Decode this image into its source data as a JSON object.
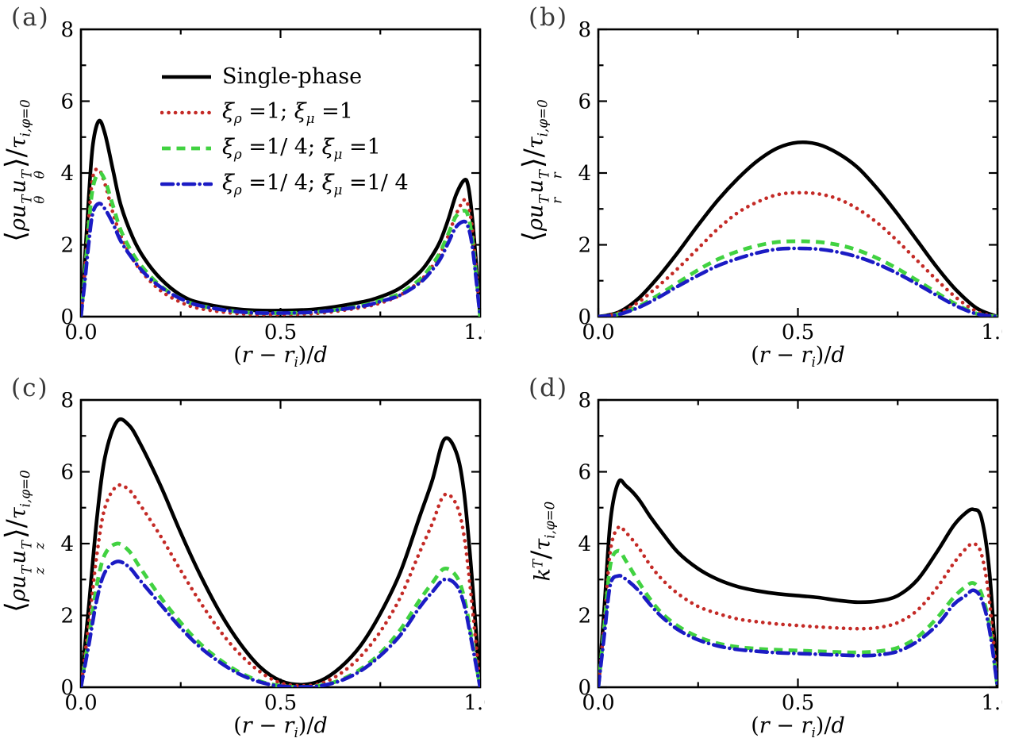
{
  "figure": {
    "background": "#ffffff",
    "axis_frame_color": "#000000",
    "panels": [
      {
        "tag": "(a)",
        "ylabel_tokens": [
          {
            "t": "⟨",
            "cls": "big"
          },
          {
            "t": "ρ",
            "i": 1
          },
          {
            "t": "u",
            "i": 1,
            "sup": "T",
            "sub": "θ"
          },
          {
            "t": "u",
            "i": 1,
            "sup": "T",
            "sub": "θ"
          },
          {
            "t": "⟩",
            "cls": "big"
          },
          {
            "t": "/",
            "cls": "slash"
          },
          {
            "t": "τ",
            "i": 1,
            "sub": "i,φ=0"
          }
        ],
        "xlabel_tokens": [
          {
            "t": "("
          },
          {
            "t": "r",
            "i": 1
          },
          {
            "t": " − "
          },
          {
            "t": "r",
            "i": 1,
            "sub": "i"
          },
          {
            "t": ")/"
          },
          {
            "t": "d",
            "i": 1
          }
        ],
        "has_legend": true
      },
      {
        "tag": "(b)",
        "ylabel_tokens": [
          {
            "t": "⟨",
            "cls": "big"
          },
          {
            "t": "ρ",
            "i": 1
          },
          {
            "t": "u",
            "i": 1,
            "sup": "T",
            "sub": "r"
          },
          {
            "t": "u",
            "i": 1,
            "sup": "T",
            "sub": "r"
          },
          {
            "t": "⟩",
            "cls": "big"
          },
          {
            "t": "/",
            "cls": "slash"
          },
          {
            "t": "τ",
            "i": 1,
            "sub": "i,φ=0"
          }
        ],
        "xlabel_tokens": [
          {
            "t": "("
          },
          {
            "t": "r",
            "i": 1
          },
          {
            "t": " − "
          },
          {
            "t": "r",
            "i": 1,
            "sub": "i"
          },
          {
            "t": ")/"
          },
          {
            "t": "d",
            "i": 1
          }
        ],
        "has_legend": false
      },
      {
        "tag": "(c)",
        "ylabel_tokens": [
          {
            "t": "⟨",
            "cls": "big"
          },
          {
            "t": "ρ",
            "i": 1
          },
          {
            "t": "u",
            "i": 1,
            "sup": "T",
            "sub": "z"
          },
          {
            "t": "u",
            "i": 1,
            "sup": "T",
            "sub": "z"
          },
          {
            "t": "⟩",
            "cls": "big"
          },
          {
            "t": "/",
            "cls": "slash"
          },
          {
            "t": "τ",
            "i": 1,
            "sub": "i,φ=0"
          }
        ],
        "xlabel_tokens": [
          {
            "t": "("
          },
          {
            "t": "r",
            "i": 1
          },
          {
            "t": " − "
          },
          {
            "t": "r",
            "i": 1,
            "sub": "i"
          },
          {
            "t": ")/"
          },
          {
            "t": "d",
            "i": 1
          }
        ],
        "has_legend": false
      },
      {
        "tag": "(d)",
        "ylabel_tokens": [
          {
            "t": "k",
            "i": 1,
            "sup": "T"
          },
          {
            "t": "/",
            "cls": "slash"
          },
          {
            "t": "τ",
            "i": 1,
            "sub": "i,φ=0"
          }
        ],
        "xlabel_tokens": [
          {
            "t": "("
          },
          {
            "t": "r",
            "i": 1
          },
          {
            "t": " − "
          },
          {
            "t": "r",
            "i": 1,
            "sub": "i"
          },
          {
            "t": ")/"
          },
          {
            "t": "d",
            "i": 1
          }
        ],
        "has_legend": false
      }
    ],
    "axis": {
      "xtick_labels": [
        "0.0",
        "0.5",
        "1.0"
      ],
      "xtick_vals": [
        0,
        0.5,
        1
      ],
      "xminor_vals": [
        0.25,
        0.75
      ],
      "ytick_labels": [
        "0",
        "2",
        "4",
        "6",
        "8"
      ],
      "ytick_vals": [
        0,
        2,
        4,
        6,
        8
      ],
      "yminor_vals": [
        1,
        3,
        5,
        7
      ]
    },
    "legend": {
      "items": [
        {
          "label_tokens": [
            {
              "t": "Single-phase"
            }
          ],
          "color": "#000000",
          "line": "solid"
        },
        {
          "label_tokens": [
            {
              "t": "ξ",
              "i": 1,
              "sub": "ρ"
            },
            {
              "t": " =1; "
            },
            {
              "t": "ξ",
              "i": 1,
              "sub": "μ"
            },
            {
              "t": " =1"
            }
          ],
          "color": "#c42a26",
          "line": "dotted"
        },
        {
          "label_tokens": [
            {
              "t": "ξ",
              "i": 1,
              "sub": "ρ"
            },
            {
              "t": " =1/ 4; "
            },
            {
              "t": "ξ",
              "i": 1,
              "sub": "μ"
            },
            {
              "t": " =1"
            }
          ],
          "color": "#41d241",
          "line": "dashed"
        },
        {
          "label_tokens": [
            {
              "t": "ξ",
              "i": 1,
              "sub": "ρ"
            },
            {
              "t": " =1/ 4; "
            },
            {
              "t": "ξ",
              "i": 1,
              "sub": "μ"
            },
            {
              "t": " =1/ 4"
            }
          ],
          "color": "#1b1bc4",
          "line": "dashdot"
        }
      ]
    }
  },
  "chart_data": [
    {
      "type": "line",
      "panel": "(a)",
      "ylabel": "⟨ρ u_θ^T u_θ^T⟩ / τ_{i,φ=0}",
      "xlabel": "(r − r_i)/d",
      "xlim": [
        0,
        1
      ],
      "ylim": [
        0,
        8
      ],
      "xticks": [
        0,
        0.5,
        1
      ],
      "yticks": [
        0,
        2,
        4,
        6,
        8
      ],
      "grid": false,
      "legend_position": "upper left (only panel with legend)",
      "x": [
        0,
        0.01,
        0.02,
        0.03,
        0.045,
        0.06,
        0.08,
        0.1,
        0.13,
        0.16,
        0.2,
        0.25,
        0.3,
        0.4,
        0.5,
        0.6,
        0.7,
        0.75,
        0.8,
        0.85,
        0.88,
        0.9,
        0.92,
        0.94,
        0.96,
        0.97,
        0.98,
        0.99,
        1
      ],
      "series": [
        {
          "name": "Single-phase",
          "color": "#000000",
          "line": "solid",
          "y": [
            0,
            1.6,
            3.4,
            4.8,
            5.45,
            5.1,
            4.1,
            3.1,
            2.2,
            1.6,
            1.05,
            0.6,
            0.38,
            0.2,
            0.17,
            0.22,
            0.4,
            0.55,
            0.8,
            1.25,
            1.7,
            2.1,
            2.7,
            3.4,
            3.8,
            3.65,
            2.8,
            1.5,
            0
          ]
        },
        {
          "name": "ξρ=1; ξμ=1",
          "color": "#c42a26",
          "line": "dotted",
          "y": [
            0,
            1.3,
            2.8,
            3.9,
            4.1,
            3.7,
            2.9,
            2.25,
            1.6,
            1.15,
            0.72,
            0.4,
            0.22,
            0.08,
            0.06,
            0.1,
            0.25,
            0.38,
            0.6,
            1.0,
            1.4,
            1.75,
            2.25,
            2.85,
            3.25,
            3.1,
            2.5,
            1.3,
            0
          ]
        },
        {
          "name": "ξρ=1/4; ξμ=1",
          "color": "#41d241",
          "line": "dashed",
          "y": [
            0,
            1.2,
            2.6,
            3.6,
            4.0,
            3.8,
            3.1,
            2.4,
            1.75,
            1.3,
            0.85,
            0.5,
            0.3,
            0.13,
            0.1,
            0.14,
            0.3,
            0.45,
            0.65,
            1.05,
            1.45,
            1.8,
            2.3,
            2.8,
            2.95,
            2.8,
            2.2,
            1.15,
            0
          ]
        },
        {
          "name": "ξρ=1/4; ξμ=1/4",
          "color": "#1b1bc4",
          "line": "dashdot",
          "y": [
            0,
            1.0,
            2.1,
            2.9,
            3.15,
            3.0,
            2.6,
            2.1,
            1.6,
            1.2,
            0.82,
            0.5,
            0.3,
            0.13,
            0.1,
            0.14,
            0.28,
            0.42,
            0.6,
            0.95,
            1.3,
            1.6,
            2.05,
            2.5,
            2.65,
            2.5,
            2.0,
            1.05,
            0
          ]
        }
      ]
    },
    {
      "type": "line",
      "panel": "(b)",
      "ylabel": "⟨ρ u_r^T u_r^T⟩ / τ_{i,φ=0}",
      "xlabel": "(r − r_i)/d",
      "xlim": [
        0,
        1
      ],
      "ylim": [
        0,
        8
      ],
      "xticks": [
        0,
        0.5,
        1
      ],
      "yticks": [
        0,
        2,
        4,
        6,
        8
      ],
      "grid": false,
      "x": [
        0,
        0.05,
        0.1,
        0.15,
        0.2,
        0.25,
        0.3,
        0.35,
        0.4,
        0.45,
        0.5,
        0.55,
        0.6,
        0.65,
        0.7,
        0.75,
        0.8,
        0.85,
        0.9,
        0.95,
        1
      ],
      "series": [
        {
          "name": "Single-phase",
          "color": "#000000",
          "line": "solid",
          "y": [
            0,
            0.12,
            0.5,
            1.1,
            1.8,
            2.55,
            3.25,
            3.85,
            4.35,
            4.7,
            4.85,
            4.8,
            4.55,
            4.15,
            3.55,
            2.85,
            2.1,
            1.35,
            0.7,
            0.22,
            0
          ]
        },
        {
          "name": "ξρ=1; ξμ=1",
          "color": "#c42a26",
          "line": "dotted",
          "y": [
            0,
            0.1,
            0.4,
            0.85,
            1.35,
            1.9,
            2.45,
            2.9,
            3.2,
            3.4,
            3.45,
            3.42,
            3.28,
            3.0,
            2.6,
            2.1,
            1.55,
            1.0,
            0.5,
            0.13,
            0
          ]
        },
        {
          "name": "ξρ=1/4; ξμ=1",
          "color": "#41d241",
          "line": "dashed",
          "y": [
            0,
            0.07,
            0.28,
            0.6,
            0.95,
            1.3,
            1.6,
            1.82,
            1.98,
            2.08,
            2.1,
            2.08,
            2.0,
            1.85,
            1.62,
            1.33,
            1.0,
            0.65,
            0.32,
            0.08,
            0
          ]
        },
        {
          "name": "ξρ=1/4; ξμ=1/4",
          "color": "#1b1bc4",
          "line": "dashdot",
          "y": [
            0,
            0.06,
            0.25,
            0.53,
            0.85,
            1.15,
            1.42,
            1.62,
            1.78,
            1.88,
            1.9,
            1.88,
            1.8,
            1.66,
            1.46,
            1.2,
            0.9,
            0.58,
            0.28,
            0.07,
            0
          ]
        }
      ]
    },
    {
      "type": "line",
      "panel": "(c)",
      "ylabel": "⟨ρ u_z^T u_z^T⟩ / τ_{i,φ=0}",
      "xlabel": "(r − r_i)/d",
      "xlim": [
        0,
        1
      ],
      "ylim": [
        0,
        8
      ],
      "xticks": [
        0,
        0.5,
        1
      ],
      "yticks": [
        0,
        2,
        4,
        6,
        8
      ],
      "grid": false,
      "x": [
        0,
        0.02,
        0.04,
        0.06,
        0.09,
        0.12,
        0.15,
        0.2,
        0.25,
        0.3,
        0.35,
        0.4,
        0.45,
        0.5,
        0.55,
        0.6,
        0.65,
        0.7,
        0.75,
        0.8,
        0.85,
        0.88,
        0.91,
        0.94,
        0.96,
        0.98,
        1
      ],
      "series": [
        {
          "name": "Single-phase",
          "color": "#000000",
          "line": "solid",
          "y": [
            0,
            2.3,
            4.7,
            6.4,
            7.4,
            7.3,
            6.75,
            5.6,
            4.3,
            3.1,
            2.05,
            1.2,
            0.55,
            0.18,
            0.07,
            0.18,
            0.55,
            1.15,
            2.05,
            3.2,
            4.8,
            5.75,
            6.9,
            6.55,
            5.4,
            3.0,
            0
          ]
        },
        {
          "name": "ξρ=1; ξμ=1",
          "color": "#c42a26",
          "line": "dotted",
          "y": [
            0,
            1.8,
            3.7,
            5.0,
            5.6,
            5.5,
            5.05,
            4.2,
            3.25,
            2.35,
            1.55,
            0.9,
            0.42,
            0.12,
            0.04,
            0.1,
            0.38,
            0.85,
            1.55,
            2.5,
            3.8,
            4.55,
            5.35,
            5.1,
            4.2,
            2.3,
            0
          ]
        },
        {
          "name": "ξρ=1/4; ξμ=1",
          "color": "#41d241",
          "line": "dashed",
          "y": [
            0,
            1.4,
            2.85,
            3.7,
            4.0,
            3.8,
            3.3,
            2.5,
            1.8,
            1.2,
            0.75,
            0.4,
            0.16,
            0.04,
            0.01,
            0.05,
            0.2,
            0.5,
            0.95,
            1.6,
            2.45,
            2.9,
            3.3,
            3.1,
            2.5,
            1.3,
            0
          ]
        },
        {
          "name": "ξρ=1/4; ξμ=1/4",
          "color": "#1b1bc4",
          "line": "dashdot",
          "y": [
            0,
            1.2,
            2.45,
            3.2,
            3.5,
            3.35,
            2.95,
            2.3,
            1.65,
            1.1,
            0.68,
            0.35,
            0.14,
            0.03,
            0.01,
            0.04,
            0.18,
            0.45,
            0.88,
            1.45,
            2.25,
            2.65,
            3.0,
            2.85,
            2.3,
            1.2,
            0
          ]
        }
      ]
    },
    {
      "type": "line",
      "panel": "(d)",
      "ylabel": "k^T / τ_{i,φ=0}",
      "xlabel": "(r − r_i)/d",
      "xlim": [
        0,
        1
      ],
      "ylim": [
        0,
        8
      ],
      "xticks": [
        0,
        0.5,
        1
      ],
      "yticks": [
        0,
        2,
        4,
        6,
        8
      ],
      "grid": false,
      "x": [
        0,
        0.015,
        0.03,
        0.05,
        0.07,
        0.1,
        0.13,
        0.16,
        0.2,
        0.25,
        0.3,
        0.35,
        0.4,
        0.45,
        0.5,
        0.55,
        0.6,
        0.65,
        0.7,
        0.75,
        0.8,
        0.85,
        0.89,
        0.92,
        0.94,
        0.96,
        0.98,
        1
      ],
      "series": [
        {
          "name": "Single-phase",
          "color": "#000000",
          "line": "solid",
          "y": [
            0,
            2.2,
            4.6,
            5.7,
            5.6,
            5.25,
            4.75,
            4.3,
            3.75,
            3.3,
            3.0,
            2.8,
            2.68,
            2.6,
            2.55,
            2.5,
            2.42,
            2.37,
            2.4,
            2.55,
            3.0,
            3.8,
            4.5,
            4.85,
            4.95,
            4.7,
            3.2,
            0
          ]
        },
        {
          "name": "ξρ=1; ξμ=1",
          "color": "#c42a26",
          "line": "dotted",
          "y": [
            0,
            1.8,
            3.8,
            4.45,
            4.3,
            3.9,
            3.4,
            3.0,
            2.6,
            2.25,
            2.05,
            1.9,
            1.82,
            1.76,
            1.72,
            1.68,
            1.65,
            1.63,
            1.66,
            1.8,
            2.15,
            2.8,
            3.45,
            3.85,
            4.0,
            3.7,
            2.4,
            0
          ]
        },
        {
          "name": "ξρ=1/4; ξμ=1",
          "color": "#41d241",
          "line": "dashed",
          "y": [
            0,
            1.7,
            3.4,
            3.8,
            3.5,
            2.95,
            2.45,
            2.05,
            1.7,
            1.4,
            1.22,
            1.12,
            1.07,
            1.04,
            1.02,
            1.0,
            0.98,
            0.97,
            1.0,
            1.1,
            1.4,
            1.95,
            2.5,
            2.8,
            2.9,
            2.6,
            1.7,
            0
          ]
        },
        {
          "name": "ξρ=1/4; ξμ=1/4",
          "color": "#1b1bc4",
          "line": "dashdot",
          "y": [
            0,
            1.45,
            2.85,
            3.1,
            3.0,
            2.7,
            2.3,
            1.95,
            1.6,
            1.32,
            1.15,
            1.05,
            1.0,
            0.96,
            0.94,
            0.92,
            0.9,
            0.88,
            0.9,
            1.0,
            1.28,
            1.75,
            2.3,
            2.55,
            2.7,
            2.45,
            1.6,
            0
          ]
        }
      ]
    }
  ]
}
